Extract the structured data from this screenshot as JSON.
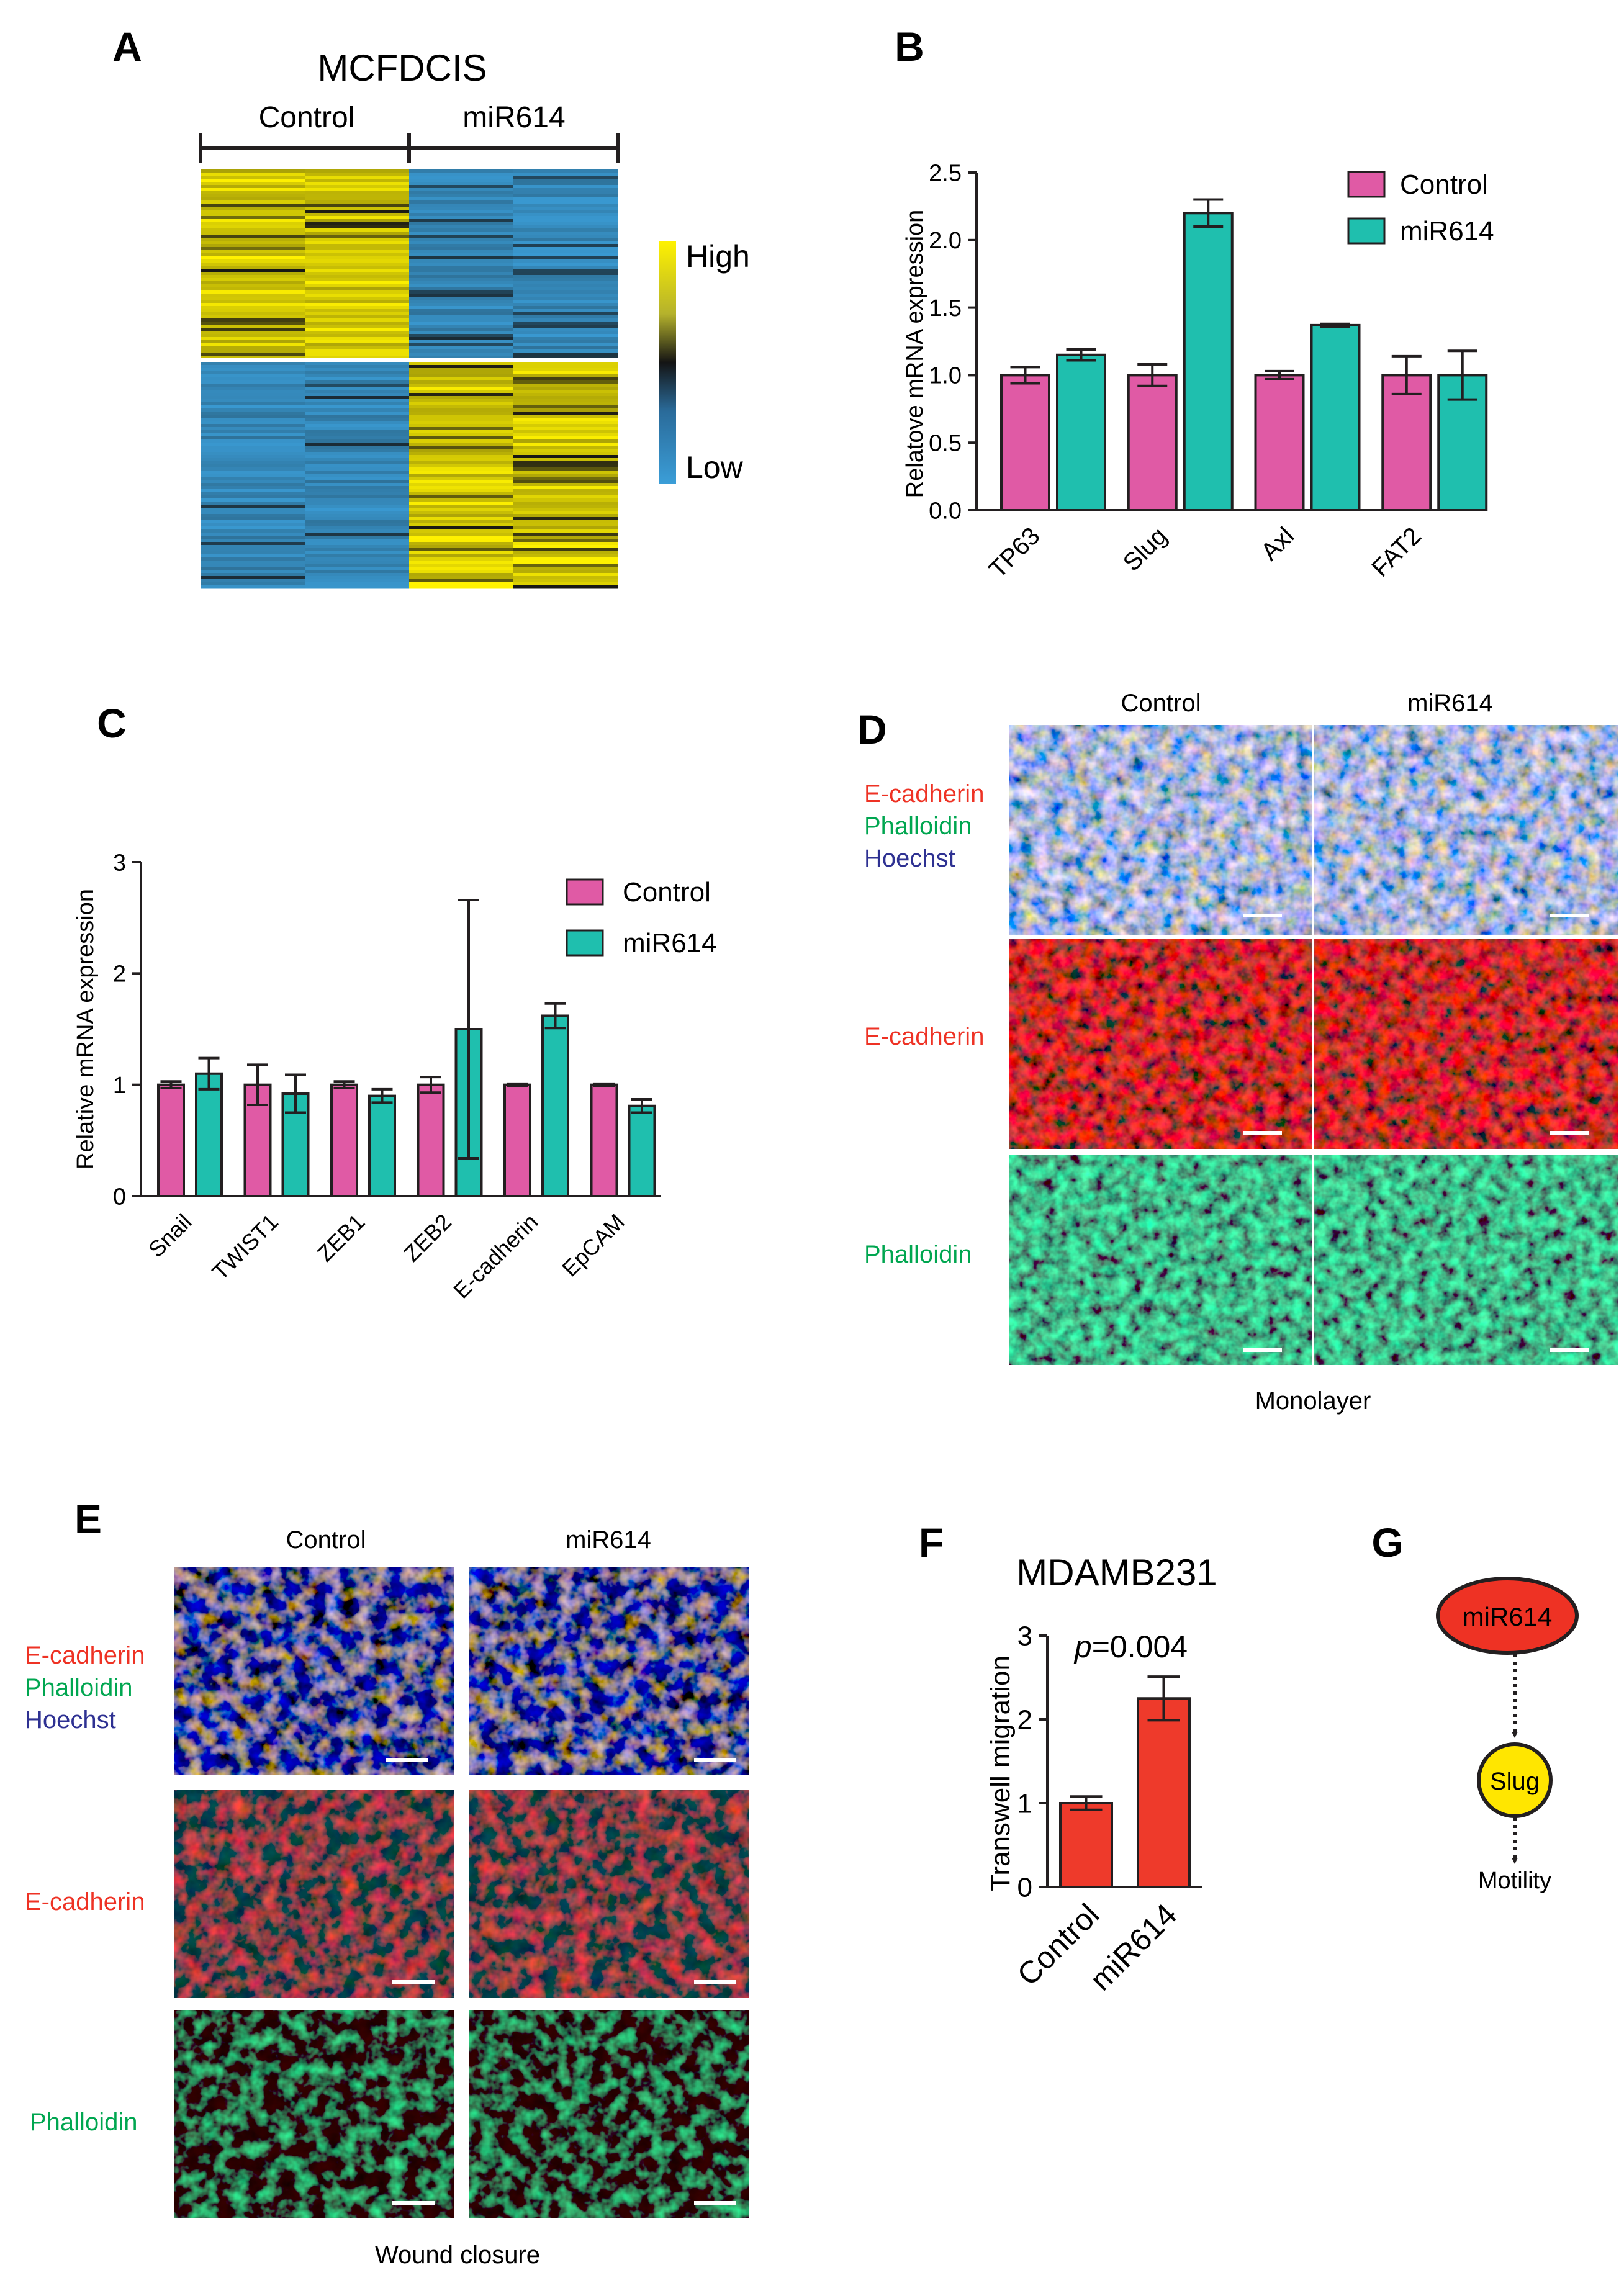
{
  "panels": {
    "a": {
      "letter": "A",
      "title": "MCFDCIS",
      "groups": [
        "Control",
        "miR614"
      ],
      "legend": {
        "high": "High",
        "low": "Low"
      }
    },
    "b": {
      "letter": "B",
      "ylabel": "Relatove mRNA expression",
      "yticks": [
        "0.0",
        "0.5",
        "1.0",
        "1.5",
        "2.0",
        "2.5"
      ],
      "legend": [
        "Control",
        "miR614"
      ]
    },
    "c": {
      "letter": "C",
      "ylabel": "Relative mRNA expression",
      "yticks": [
        "0",
        "1",
        "2",
        "3"
      ],
      "legend": [
        "Control",
        "miR614"
      ]
    },
    "d": {
      "letter": "D",
      "cols": [
        "Control",
        "miR614"
      ],
      "row_labels": {
        "merge": [
          "E-cadherin",
          "Phalloidin",
          "Hoechst"
        ],
        "ecad": "E-cadherin",
        "phal": "Phalloidin"
      },
      "caption": "Monolayer"
    },
    "e": {
      "letter": "E",
      "cols": [
        "Control",
        "miR614"
      ],
      "row_labels": {
        "merge": [
          "E-cadherin",
          "Phalloidin",
          "Hoechst"
        ],
        "ecad": "E-cadherin",
        "phal": "Phalloidin"
      },
      "caption": "Wound closure"
    },
    "f": {
      "letter": "F",
      "title": "MDAMB231",
      "ylabel": "Transwell migration",
      "pval_prefix": "p",
      "pval_value": "=0.004",
      "yticks": [
        "0",
        "1",
        "2",
        "3"
      ]
    },
    "g": {
      "letter": "G",
      "node1": "miR614",
      "node2": "Slug",
      "node3": "Motility"
    }
  },
  "colors": {
    "control": "#e05aa5",
    "mir614": "#1fbfae",
    "bar_f": "#ee3a2b",
    "red_label": "#ee3224",
    "green_label": "#00a650",
    "blue_label": "#2e3192",
    "heat_high": "#fff200",
    "heat_low": "#3b9ed8",
    "mir_node": "#ee3224",
    "slug_node": "#ffe600"
  },
  "chart_data": [
    {
      "panel": "B",
      "type": "bar",
      "categories": [
        "TP63",
        "Slug",
        "Axl",
        "FAT2"
      ],
      "ylabel": "Relatove mRNA expression",
      "ylim": [
        0,
        2.5
      ],
      "series": [
        {
          "name": "Control",
          "values": [
            1.0,
            1.0,
            1.0,
            1.0
          ],
          "errors": [
            0.06,
            0.08,
            0.03,
            0.14
          ]
        },
        {
          "name": "miR614",
          "values": [
            1.15,
            2.2,
            1.37,
            1.0
          ],
          "errors": [
            0.04,
            0.1,
            0.01,
            0.18
          ]
        }
      ],
      "legend": "top-right",
      "grid": false
    },
    {
      "panel": "C",
      "type": "bar",
      "categories": [
        "Snail",
        "TWIST1",
        "ZEB1",
        "ZEB2",
        "E-cadherin",
        "EpCAM"
      ],
      "ylabel": "Relative mRNA expression",
      "ylim": [
        0,
        3
      ],
      "series": [
        {
          "name": "Control",
          "values": [
            1.0,
            1.0,
            1.0,
            1.0,
            1.0,
            1.0
          ],
          "errors": [
            0.03,
            0.18,
            0.03,
            0.07,
            0.01,
            0.01
          ]
        },
        {
          "name": "miR614",
          "values": [
            1.1,
            0.92,
            0.9,
            1.5,
            1.62,
            0.81
          ],
          "errors": [
            0.14,
            0.17,
            0.06,
            1.16,
            0.11,
            0.06
          ]
        }
      ],
      "legend": "top-right",
      "grid": false
    },
    {
      "panel": "F",
      "type": "bar",
      "categories": [
        "Control",
        "miR614"
      ],
      "ylabel": "Transwell migration",
      "ylim": [
        0,
        3
      ],
      "values": [
        1.0,
        2.25
      ],
      "errors": [
        0.08,
        0.26
      ],
      "annotation": "p=0.004",
      "grid": false
    }
  ]
}
